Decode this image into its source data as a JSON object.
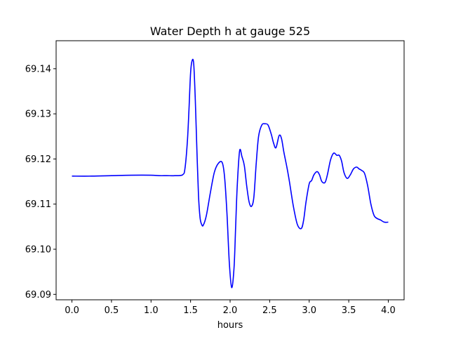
{
  "chart_data": {
    "type": "line",
    "title": "Water Depth h at gauge 525",
    "xlabel": "hours",
    "ylabel": "",
    "xlim": [
      -0.2,
      4.2
    ],
    "ylim": [
      69.0888,
      69.1462
    ],
    "x_ticks": [
      "0.0",
      "0.5",
      "1.0",
      "1.5",
      "2.0",
      "2.5",
      "3.0",
      "3.5",
      "4.0"
    ],
    "x_tick_values": [
      0.0,
      0.5,
      1.0,
      1.5,
      2.0,
      2.5,
      3.0,
      3.5,
      4.0
    ],
    "y_ticks": [
      "69.09",
      "69.10",
      "69.11",
      "69.12",
      "69.13",
      "69.14"
    ],
    "y_tick_values": [
      69.09,
      69.1,
      69.11,
      69.12,
      69.13,
      69.14
    ],
    "grid": false,
    "series": [
      {
        "color": "#0000ff",
        "x": [
          0.0,
          0.25,
          0.5,
          0.75,
          1.0,
          1.1,
          1.2,
          1.3,
          1.4,
          1.43,
          1.46,
          1.48,
          1.5,
          1.52,
          1.54,
          1.56,
          1.58,
          1.6,
          1.62,
          1.64,
          1.66,
          1.7,
          1.75,
          1.8,
          1.85,
          1.9,
          1.93,
          1.96,
          1.99,
          2.02,
          2.05,
          2.07,
          2.09,
          2.12,
          2.15,
          2.18,
          2.21,
          2.24,
          2.27,
          2.3,
          2.33,
          2.36,
          2.4,
          2.44,
          2.48,
          2.52,
          2.55,
          2.58,
          2.62,
          2.65,
          2.68,
          2.72,
          2.75,
          2.8,
          2.85,
          2.9,
          2.93,
          2.96,
          3.0,
          3.03,
          3.06,
          3.1,
          3.13,
          3.16,
          3.2,
          3.23,
          3.27,
          3.31,
          3.35,
          3.38,
          3.41,
          3.44,
          3.48,
          3.52,
          3.56,
          3.6,
          3.63,
          3.66,
          3.7,
          3.74,
          3.78,
          3.82,
          3.86,
          3.9,
          3.95,
          4.0
        ],
        "y": [
          69.1162,
          69.1162,
          69.1163,
          69.1164,
          69.1164,
          69.1163,
          69.1163,
          69.1163,
          69.1165,
          69.118,
          69.124,
          69.131,
          69.139,
          69.1418,
          69.141,
          69.133,
          69.122,
          69.112,
          69.107,
          69.1055,
          69.1053,
          69.1075,
          69.1125,
          69.117,
          69.119,
          69.1192,
          69.116,
          69.108,
          69.097,
          69.0915,
          69.096,
          69.105,
          69.114,
          69.1218,
          69.1205,
          69.1185,
          69.114,
          69.1105,
          69.1095,
          69.1115,
          69.119,
          69.125,
          69.1275,
          69.1278,
          69.1275,
          69.1255,
          69.1235,
          69.1225,
          69.1252,
          69.1245,
          69.1215,
          69.118,
          69.115,
          69.1095,
          69.1055,
          69.1046,
          69.1065,
          69.1105,
          69.1145,
          69.1152,
          69.1165,
          69.1172,
          69.1165,
          69.115,
          69.1148,
          69.1165,
          69.1198,
          69.1213,
          69.1208,
          69.1208,
          69.1195,
          69.117,
          69.1157,
          69.1165,
          69.1178,
          69.1182,
          69.1178,
          69.1175,
          69.1168,
          69.114,
          69.11,
          69.1075,
          69.1068,
          69.1065,
          69.106,
          69.106
        ]
      }
    ]
  }
}
